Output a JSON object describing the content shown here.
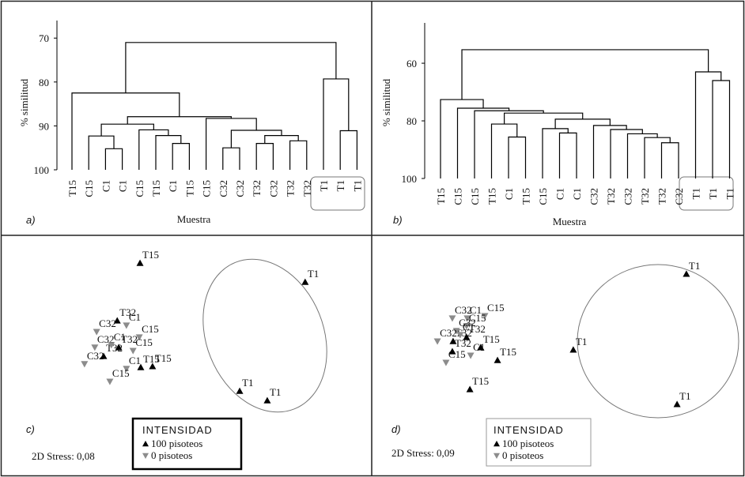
{
  "chart_data": [
    {
      "type": "dendrogram",
      "panel_label": "a)",
      "ylabel": "% similitud",
      "xlabel": "Muestra",
      "ylim": [
        100,
        66
      ],
      "yticks": [
        70,
        80,
        90,
        100
      ],
      "leaves": [
        "T15",
        "C15",
        "C1",
        "C1",
        "C15",
        "T15",
        "C1",
        "T15",
        "C15",
        "C32",
        "C32",
        "T32",
        "C32",
        "T32",
        "T32",
        "T1",
        "T1",
        "T1"
      ],
      "merges": [
        {
          "left": 2,
          "right": 3,
          "height": 95.2
        },
        {
          "left": 1,
          "right": 18,
          "height": 92.3
        },
        {
          "left": 6,
          "right": 7,
          "height": 94.0
        },
        {
          "left": 5,
          "right": 20,
          "height": 92.2
        },
        {
          "left": 4,
          "right": 21,
          "height": 90.9
        },
        {
          "left": 19,
          "right": 22,
          "height": 89.6
        },
        {
          "left": 9,
          "right": 10,
          "height": 95.0
        },
        {
          "left": 11,
          "right": 12,
          "height": 94.0
        },
        {
          "left": 13,
          "right": 14,
          "height": 93.4
        },
        {
          "left": 25,
          "right": 26,
          "height": 92.2
        },
        {
          "left": 24,
          "right": 27,
          "height": 91.0
        },
        {
          "left": 8,
          "right": 28,
          "height": 88.3
        },
        {
          "left": 23,
          "right": 29,
          "height": 87.9
        },
        {
          "left": 0,
          "right": 30,
          "height": 82.5
        },
        {
          "left": 16,
          "right": 17,
          "height": 91.1
        },
        {
          "left": 15,
          "right": 32,
          "height": 79.3
        },
        {
          "left": 31,
          "right": 33,
          "height": 71.0
        }
      ]
    },
    {
      "type": "dendrogram",
      "panel_label": "b)",
      "ylabel": "% similitud",
      "xlabel": "Muestra",
      "ylim": [
        100,
        46
      ],
      "yticks": [
        60,
        80,
        100
      ],
      "leaves": [
        "T15",
        "C15",
        "C15",
        "T15",
        "C1",
        "T15",
        "C15",
        "C1",
        "C1",
        "C32",
        "T32",
        "C32",
        "T32",
        "T32",
        "C32",
        "T1",
        "T1",
        "T1"
      ],
      "merges": [
        {
          "left": 4,
          "right": 5,
          "height": 85.6
        },
        {
          "left": 3,
          "right": 18,
          "height": 81.1
        },
        {
          "left": 7,
          "right": 8,
          "height": 84.2
        },
        {
          "left": 6,
          "right": 20,
          "height": 82.7
        },
        {
          "left": 13,
          "right": 14,
          "height": 87.6
        },
        {
          "left": 12,
          "right": 22,
          "height": 85.8
        },
        {
          "left": 11,
          "right": 23,
          "height": 84.5
        },
        {
          "left": 10,
          "right": 24,
          "height": 83.0
        },
        {
          "left": 9,
          "right": 25,
          "height": 81.6
        },
        {
          "left": 21,
          "right": 26,
          "height": 79.4
        },
        {
          "left": 19,
          "right": 27,
          "height": 77.3
        },
        {
          "left": 2,
          "right": 28,
          "height": 76.5
        },
        {
          "left": 1,
          "right": 29,
          "height": 75.6
        },
        {
          "left": 0,
          "right": 30,
          "height": 72.6
        },
        {
          "left": 16,
          "right": 17,
          "height": 66.0
        },
        {
          "left": 15,
          "right": 32,
          "height": 63.0
        },
        {
          "left": 31,
          "right": 33,
          "height": 55.3
        }
      ]
    },
    {
      "type": "scatter",
      "panel_label": "c)",
      "stress_label": "2D Stress: 0,08",
      "legend_title": "INTENSIDAD",
      "xlim": [
        0,
        100
      ],
      "ylim": [
        0,
        100
      ],
      "series": [
        {
          "name": "100 pisoteos",
          "color": "#000000",
          "marker": "triangle-up",
          "labels": [
            "T15",
            "T1",
            "T32",
            "T32",
            "T32",
            "T15",
            "T15",
            "T1",
            "T1"
          ],
          "x": [
            37.0,
            81.9,
            30.8,
            31.2,
            27.1,
            37.2,
            40.4,
            64.1,
            71.6
          ],
          "values": [
            88.3,
            80.3,
            64.0,
            52.7,
            49.0,
            44.3,
            44.7,
            34.3,
            30.3
          ]
        },
        {
          "name": "0 pisoteos",
          "color": "#8c8c8c",
          "marker": "triangle-down",
          "labels": [
            "C32",
            "C1",
            "C15",
            "C32",
            "C1",
            "C15",
            "C32",
            "C1",
            "C15"
          ],
          "x": [
            25.2,
            33.3,
            36.8,
            24.7,
            29.2,
            35.1,
            21.9,
            33.3,
            28.8
          ],
          "values": [
            59.3,
            62.0,
            57.0,
            52.7,
            53.7,
            51.3,
            45.7,
            43.7,
            38.3
          ]
        }
      ]
    },
    {
      "type": "scatter",
      "panel_label": "d)",
      "stress_label": "2D Stress: 0,09",
      "legend_title": "INTENSIDAD",
      "xlim": [
        0,
        100
      ],
      "ylim": [
        0,
        100
      ],
      "series": [
        {
          "name": "100 pisoteos",
          "color": "#000000",
          "marker": "triangle-up",
          "labels": [
            "T1",
            "T1",
            "T1",
            "T15",
            "T15",
            "T15",
            "T32",
            "T32",
            "T32"
          ],
          "x": [
            84.3,
            54.0,
            81.8,
            26.3,
            33.7,
            29.2,
            25.4,
            21.8,
            21.6
          ],
          "values": [
            83.7,
            51.7,
            28.7,
            35.0,
            47.3,
            52.7,
            57.0,
            55.3,
            51.0
          ]
        },
        {
          "name": "0 pisoteos",
          "color": "#8c8c8c",
          "marker": "triangle-down",
          "labels": [
            "C32",
            "C1",
            "C15",
            "C15",
            "C32",
            "C32",
            "C15",
            "C1",
            "C1"
          ],
          "x": [
            21.6,
            25.6,
            30.3,
            25.4,
            22.7,
            17.6,
            19.9,
            26.5,
            23.7
          ],
          "values": [
            65.0,
            65.0,
            66.0,
            61.7,
            59.7,
            55.3,
            46.3,
            49.3,
            58.0
          ]
        }
      ]
    }
  ]
}
